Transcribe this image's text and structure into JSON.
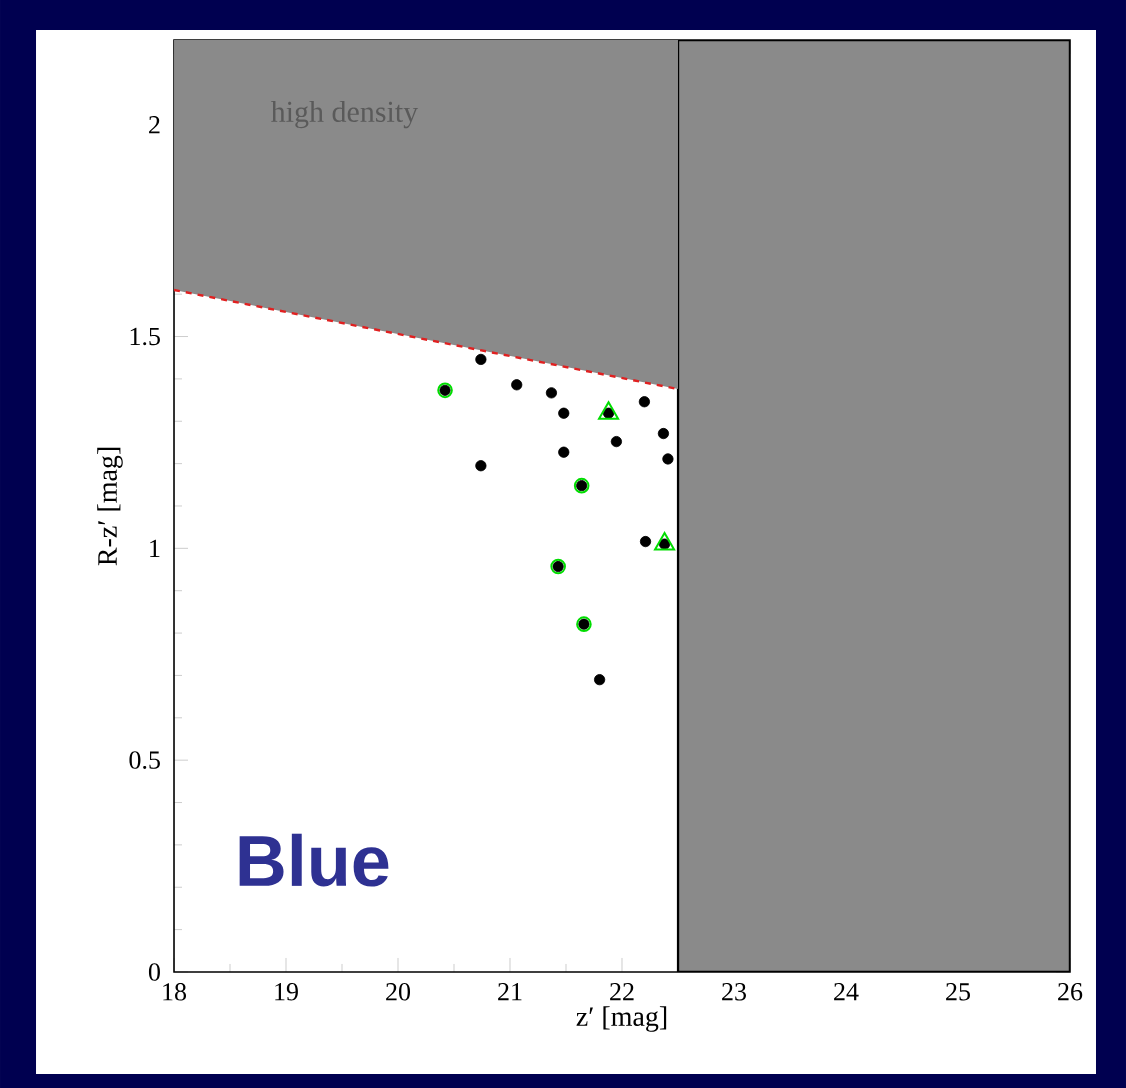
{
  "chart_data": {
    "type": "scatter",
    "xlabel": "z′ [mag]",
    "ylabel": "R-z′ [mag]",
    "xlim": [
      18,
      26
    ],
    "ylim": [
      0,
      2.2
    ],
    "xticks": [
      18,
      19,
      20,
      21,
      22,
      23,
      24,
      25,
      26
    ],
    "yticks": [
      0,
      0.5,
      1,
      1.5,
      2
    ],
    "annotations": [
      "high density",
      "Blue"
    ],
    "bands": [
      {
        "axis": "x",
        "from": 22.5,
        "to": 26,
        "color": "#8a8a8a"
      }
    ],
    "series": [
      {
        "type": "line",
        "color": "#e02020",
        "line_style": "dashed",
        "marker": "none",
        "x": [
          18,
          22.5
        ],
        "values": [
          1.61,
          1.376
        ],
        "lower": [
          1.61,
          1.376
        ],
        "upper": [
          2.2,
          2.2
        ]
      },
      {
        "color": "#000000",
        "marker": "circle",
        "x": [
          20.74,
          20.42,
          21.06,
          21.37,
          21.48,
          21.88,
          22.2,
          21.95,
          21.48,
          22.37,
          20.74,
          22.41,
          21.64,
          22.21,
          22.38,
          21.43,
          21.66,
          21.8
        ],
        "values": [
          1.446,
          1.373,
          1.386,
          1.367,
          1.319,
          1.319,
          1.346,
          1.252,
          1.227,
          1.271,
          1.195,
          1.211,
          1.148,
          1.016,
          1.01,
          0.957,
          0.821,
          0.69
        ]
      },
      {
        "color": "#00dd00",
        "marker": "circle",
        "x": [
          20.42,
          21.64,
          21.43,
          21.66
        ],
        "values": [
          1.373,
          1.148,
          0.957,
          0.821
        ]
      },
      {
        "color": "#00dd00",
        "marker": "triangle",
        "x": [
          21.88,
          22.38
        ],
        "values": [
          1.319,
          1.01
        ]
      }
    ]
  }
}
